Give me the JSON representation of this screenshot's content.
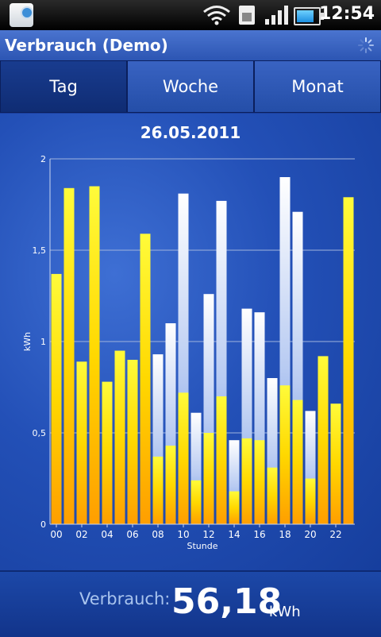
{
  "status_bar": {
    "time": "12:54",
    "icons": [
      "app-notification-icon",
      "wifi-icon",
      "sim-card-icon",
      "signal-strength-icon",
      "battery-icon"
    ]
  },
  "app": {
    "title": "Verbrauch (Demo)",
    "loading_icon": "spinner-icon"
  },
  "tabs": [
    {
      "label": "Tag",
      "active": true
    },
    {
      "label": "Woche",
      "active": false
    },
    {
      "label": "Monat",
      "active": false
    }
  ],
  "chart_data": {
    "type": "bar",
    "title": "26.05.2011",
    "xlabel": "Stunde",
    "ylabel": "kWh",
    "ylim": [
      0,
      2
    ],
    "yticks": [
      "0",
      "0,5",
      "1",
      "1,5",
      "2"
    ],
    "xticks": [
      "00",
      "02",
      "04",
      "06",
      "08",
      "10",
      "12",
      "14",
      "16",
      "18",
      "20",
      "22"
    ],
    "categories": [
      "00",
      "01",
      "02",
      "03",
      "04",
      "05",
      "06",
      "07",
      "08",
      "09",
      "10",
      "11",
      "12",
      "13",
      "14",
      "15",
      "16",
      "17",
      "18",
      "19",
      "20",
      "21",
      "22",
      "23"
    ],
    "series": [
      {
        "color": "#f7c800",
        "values": [
          1.37,
          1.84,
          0.89,
          1.85,
          0.78,
          0.95,
          0.9,
          1.59,
          0.37,
          0.43,
          0.72,
          0.24,
          0.5,
          0.7,
          0.18,
          0.47,
          0.46,
          0.31,
          0.76,
          0.68,
          0.25,
          0.92,
          0.66,
          1.79
        ]
      },
      {
        "color": "#dfe8ff",
        "values": [
          0,
          0,
          0,
          0,
          0,
          0,
          0,
          0,
          0.93,
          1.1,
          1.81,
          0.61,
          1.26,
          1.77,
          0.46,
          1.18,
          1.16,
          0.8,
          1.9,
          1.71,
          0.62,
          0,
          0,
          0
        ]
      }
    ],
    "grid": true
  },
  "footer": {
    "label": "Verbrauch:",
    "value": "56,18",
    "unit": "kWh"
  }
}
